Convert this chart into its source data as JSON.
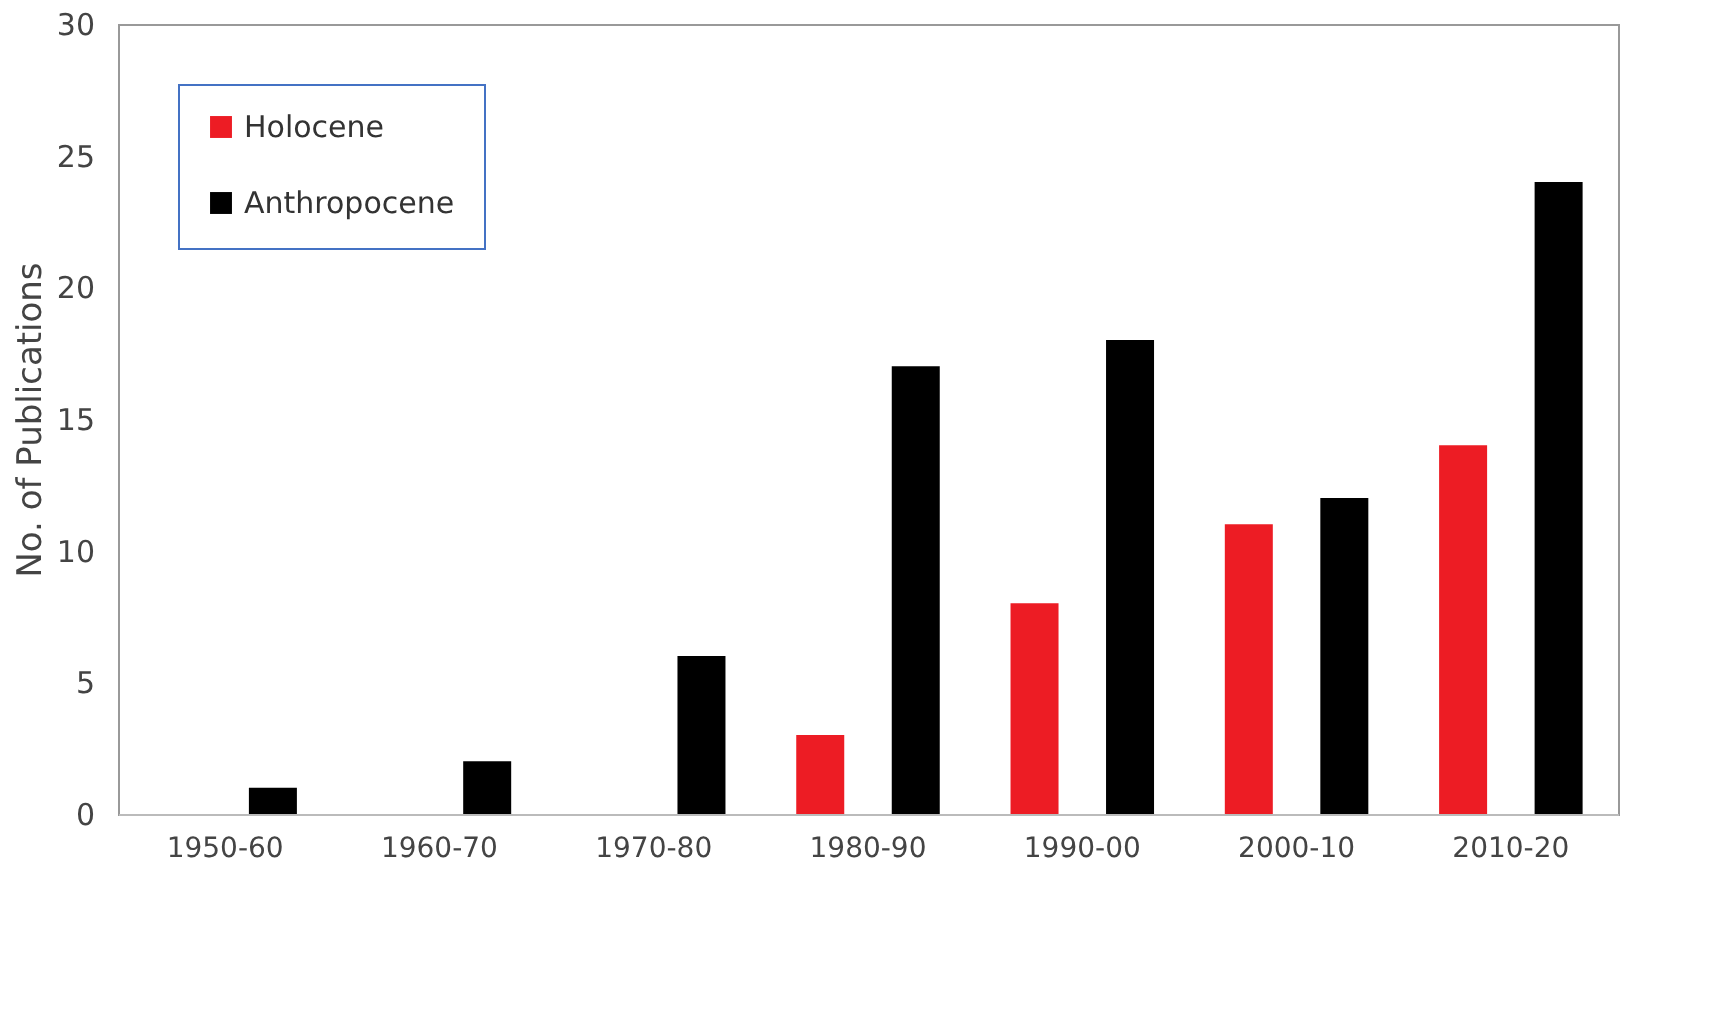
{
  "chart_data": {
    "type": "bar",
    "ylabel": "No. of Publications",
    "categories": [
      "1950-60",
      "1960-70",
      "1970-80",
      "1980-90",
      "1990-00",
      "2000-10",
      "2010-20"
    ],
    "series": [
      {
        "name": "Holocene",
        "color": "#ed1c24",
        "values": [
          0,
          0,
          0,
          3,
          8,
          11,
          14
        ]
      },
      {
        "name": "Anthropocene",
        "color": "#000000",
        "values": [
          1,
          2,
          6,
          17,
          18,
          12,
          24
        ]
      }
    ],
    "ylim": [
      0,
      30
    ],
    "yticks": [
      0,
      5,
      10,
      15,
      20,
      25,
      30
    ],
    "grid": false,
    "legend": "top left"
  }
}
